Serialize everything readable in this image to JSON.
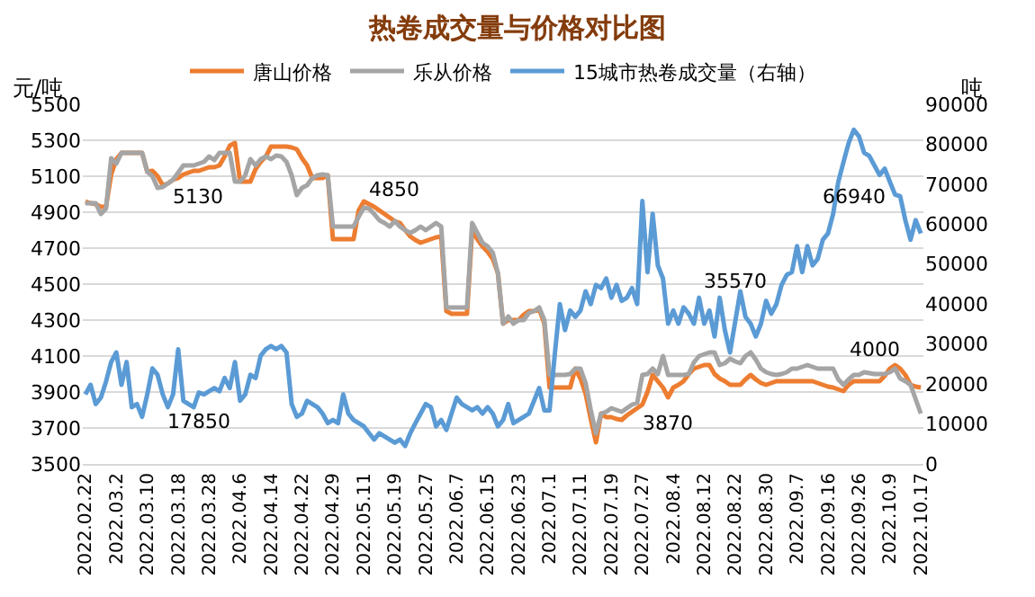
{
  "chart_data": {
    "type": "line",
    "title": "热卷成交量与价格对比图",
    "ylabel": "元/吨",
    "y2label": "吨",
    "categories": [
      "2022.02.22",
      null,
      null,
      null,
      null,
      null,
      "2022.03.2",
      null,
      null,
      null,
      null,
      null,
      "2022.03.10",
      null,
      null,
      null,
      null,
      null,
      "2022.03.18",
      null,
      null,
      null,
      null,
      null,
      "2022.03.28",
      null,
      null,
      null,
      null,
      null,
      "2022.04.6",
      null,
      null,
      null,
      null,
      null,
      "2022.04.14",
      null,
      null,
      null,
      null,
      null,
      "2022.04.22",
      null,
      null,
      null,
      null,
      null,
      "2022.04.29",
      null,
      null,
      null,
      null,
      null,
      "2022.05.11",
      null,
      null,
      null,
      null,
      null,
      "2022.05.19",
      null,
      null,
      null,
      null,
      null,
      "2022.05.27",
      null,
      null,
      null,
      null,
      null,
      "2022.06.7",
      null,
      null,
      null,
      null,
      null,
      "2022.06.15",
      null,
      null,
      null,
      null,
      null,
      "2022.06.23",
      null,
      null,
      null,
      null,
      null,
      "2022.07.1",
      null,
      null,
      null,
      null,
      null,
      "2022.07.11",
      null,
      null,
      null,
      null,
      null,
      "2022.07.19",
      null,
      null,
      null,
      null,
      null,
      "2022.07.27",
      null,
      null,
      null,
      null,
      null,
      "2022.08.4",
      null,
      null,
      null,
      null,
      null,
      "2022.08.12",
      null,
      null,
      null,
      null,
      null,
      "2022.08.22",
      null,
      null,
      null,
      null,
      null,
      "2022.08.30",
      null,
      null,
      null,
      null,
      null,
      "2022.09.7",
      null,
      null,
      null,
      null,
      null,
      "2022.09.16",
      null,
      null,
      null,
      null,
      null,
      "2022.09.26",
      null,
      null,
      null,
      null,
      null,
      "2022.10.9",
      null,
      null,
      null,
      null,
      null,
      "2022.10.17"
    ],
    "ylim": [
      3500,
      5500
    ],
    "yticks": [
      3500,
      3700,
      3900,
      4100,
      4300,
      4500,
      4700,
      4900,
      5100,
      5300,
      5500
    ],
    "y2lim": [
      0,
      90000
    ],
    "y2ticks": [
      0,
      10000,
      20000,
      30000,
      40000,
      50000,
      60000,
      70000,
      80000,
      90000
    ],
    "grid": "y",
    "legend": "top",
    "marker": "none",
    "line_style": "solid",
    "series": [
      {
        "name": "唐山价格",
        "color": "#ed7d31",
        "values": [
          4960,
          4950,
          4945,
          4930,
          4930,
          5110,
          5195,
          5230,
          5230,
          5230,
          5230,
          5230,
          5125,
          5130,
          5100,
          5050,
          5060,
          5080,
          5090,
          5110,
          5120,
          5130,
          5130,
          5140,
          5150,
          5150,
          5160,
          5210,
          5270,
          5285,
          5070,
          5070,
          5070,
          5140,
          5180,
          5210,
          5265,
          5265,
          5265,
          5265,
          5260,
          5250,
          5200,
          5160,
          5090,
          5090,
          5090,
          5105,
          4750,
          4750,
          4750,
          4750,
          4750,
          4910,
          4960,
          4945,
          4930,
          4910,
          4890,
          4870,
          4850,
          4840,
          4800,
          4765,
          4745,
          4730,
          4740,
          4750,
          4760,
          4765,
          4350,
          4335,
          4335,
          4335,
          4335,
          4800,
          4750,
          4710,
          4680,
          4640,
          4560,
          4280,
          4300,
          4300,
          4300,
          4330,
          4350,
          4350,
          4360,
          4280,
          3925,
          3925,
          3925,
          3925,
          3925,
          4030,
          3975,
          3890,
          3750,
          3620,
          3780,
          3760,
          3760,
          3750,
          3745,
          3770,
          3790,
          3810,
          3830,
          3900,
          3995,
          3960,
          3925,
          3870,
          3925,
          3940,
          3960,
          4000,
          4030,
          4040,
          4050,
          4050,
          4000,
          3975,
          3960,
          3940,
          3940,
          3940,
          3970,
          3995,
          3970,
          3950,
          3940,
          3950,
          3960,
          3960,
          3960,
          3960,
          3960,
          3960,
          3960,
          3960,
          3950,
          3940,
          3930,
          3925,
          3915,
          3905,
          3940,
          3960,
          3960,
          3960,
          3960,
          3960,
          3960,
          3990,
          4030,
          4050,
          4030,
          3995,
          3940,
          3930,
          3925
        ],
        "value_labels": [
          null,
          null,
          null,
          null,
          null,
          null,
          null,
          null,
          null,
          null,
          null,
          null,
          null,
          null,
          null,
          null,
          null,
          null,
          null,
          null,
          null,
          null,
          "5130",
          null,
          null,
          null,
          null,
          null,
          null,
          null,
          null,
          null,
          null,
          null,
          null,
          null,
          null,
          null,
          null,
          null,
          null,
          null,
          null,
          null,
          null,
          null,
          null,
          null,
          null,
          null,
          null,
          null,
          null,
          null,
          null,
          null,
          null,
          null,
          null,
          null,
          null,
          null,
          null,
          null,
          null,
          null,
          null,
          null,
          null,
          null,
          null,
          null,
          null,
          null,
          null,
          null,
          null,
          null,
          null,
          null,
          null,
          null,
          null,
          null,
          null,
          null,
          null,
          null,
          null,
          null,
          null,
          null,
          null,
          null,
          null,
          null,
          null,
          null,
          null,
          null,
          null,
          null,
          null,
          null,
          null,
          null,
          null,
          null,
          null,
          null,
          null,
          null,
          null,
          "3870",
          null,
          null,
          null,
          null,
          null,
          null,
          null,
          null,
          null,
          null,
          null,
          null,
          null,
          null,
          null,
          null,
          null,
          null,
          null,
          null,
          null,
          null,
          null,
          null,
          null,
          null,
          null,
          null,
          null,
          null,
          null,
          null,
          null,
          null,
          null,
          null,
          null,
          null,
          null,
          null,
          null,
          null,
          null,
          null,
          null,
          null,
          null,
          null,
          null
        ]
      },
      {
        "name": "乐从价格",
        "color": "#a5a5a5",
        "values": [
          4950,
          4950,
          4950,
          4890,
          4920,
          5200,
          5170,
          5230,
          5230,
          5230,
          5230,
          5230,
          5125,
          5100,
          5035,
          5040,
          5060,
          5080,
          5120,
          5160,
          5160,
          5160,
          5170,
          5180,
          5210,
          5190,
          5230,
          5230,
          5230,
          5070,
          5070,
          5105,
          5195,
          5160,
          5195,
          5210,
          5195,
          5215,
          5210,
          5180,
          5105,
          4995,
          5035,
          5050,
          5090,
          5105,
          5110,
          5105,
          4820,
          4820,
          4820,
          4820,
          4820,
          4875,
          4925,
          4920,
          4890,
          4855,
          4840,
          4820,
          4850,
          4820,
          4800,
          4785,
          4800,
          4820,
          4800,
          4820,
          4840,
          4820,
          4370,
          4370,
          4370,
          4370,
          4370,
          4840,
          4785,
          4730,
          4710,
          4675,
          4560,
          4280,
          4320,
          4280,
          4300,
          4300,
          4340,
          4350,
          4370,
          4300,
          3995,
          3995,
          3995,
          3995,
          4000,
          4030,
          4030,
          3950,
          3800,
          3670,
          3780,
          3790,
          3810,
          3800,
          3790,
          3810,
          3830,
          3840,
          3995,
          4000,
          4030,
          4000,
          4100,
          3995,
          3995,
          3995,
          3995,
          4000,
          4065,
          4100,
          4110,
          4120,
          4120,
          4050,
          4060,
          4085,
          4070,
          4060,
          4100,
          4120,
          4080,
          4030,
          4010,
          4000,
          3995,
          4000,
          4010,
          4030,
          4030,
          4040,
          4050,
          4040,
          4030,
          4030,
          4030,
          4030,
          3970,
          3940,
          3970,
          3995,
          3995,
          4010,
          4005,
          4000,
          4000,
          4000,
          4010,
          4030,
          3975,
          3960,
          3940,
          3860,
          3780
        ],
        "value_labels": [
          null,
          null,
          null,
          null,
          null,
          null,
          null,
          null,
          null,
          null,
          null,
          null,
          null,
          null,
          null,
          null,
          null,
          null,
          null,
          null,
          null,
          null,
          null,
          null,
          null,
          null,
          null,
          null,
          null,
          null,
          null,
          null,
          null,
          null,
          null,
          null,
          null,
          null,
          null,
          null,
          null,
          null,
          null,
          null,
          null,
          null,
          null,
          null,
          null,
          null,
          null,
          null,
          null,
          null,
          null,
          null,
          null,
          null,
          null,
          null,
          "4850",
          null,
          null,
          null,
          null,
          null,
          null,
          null,
          null,
          null,
          null,
          null,
          null,
          null,
          null,
          null,
          null,
          null,
          null,
          null,
          null,
          null,
          null,
          null,
          null,
          null,
          null,
          null,
          null,
          null,
          null,
          null,
          null,
          null,
          null,
          null,
          null,
          null,
          null,
          null,
          null,
          null,
          null,
          null,
          null,
          null,
          null,
          null,
          null,
          null,
          null,
          null,
          null,
          null,
          null,
          null,
          null,
          null,
          null,
          null,
          null,
          null,
          null,
          null,
          null,
          null,
          null,
          null,
          null,
          null,
          null,
          null,
          null,
          null,
          null,
          null,
          null,
          null,
          null,
          null,
          null,
          null,
          null,
          null,
          null,
          null,
          null,
          null,
          null,
          null,
          null,
          null,
          null,
          "4000",
          null,
          null,
          null,
          null,
          null,
          null,
          null,
          null,
          null
        ]
      },
      {
        "name": "15城市热卷成交量（右轴）",
        "color": "#5b9bd5",
        "axis": "y2",
        "values": [
          17400,
          19800,
          15000,
          16600,
          20600,
          25500,
          27900,
          19800,
          25500,
          14200,
          15000,
          11800,
          17400,
          23900,
          22300,
          17400,
          14200,
          17400,
          28700,
          15800,
          15000,
          14200,
          17850,
          17400,
          18200,
          19000,
          18200,
          21500,
          19000,
          25500,
          15800,
          17400,
          22300,
          21500,
          27100,
          28700,
          29500,
          28700,
          29500,
          27900,
          15000,
          11800,
          12600,
          15800,
          15000,
          14200,
          12600,
          10200,
          11000,
          10200,
          17400,
          12600,
          11000,
          10200,
          9400,
          7700,
          6100,
          7700,
          6900,
          6100,
          5300,
          6100,
          4500,
          7700,
          10200,
          12600,
          15000,
          14200,
          9400,
          11000,
          8500,
          12600,
          16600,
          15000,
          14200,
          13400,
          14200,
          12600,
          14200,
          12600,
          9400,
          11000,
          15000,
          10200,
          11000,
          11800,
          12600,
          15800,
          19000,
          13400,
          13400,
          27100,
          40000,
          33500,
          38400,
          36800,
          38400,
          43200,
          40000,
          44800,
          44000,
          46400,
          41600,
          44800,
          40800,
          41600,
          44000,
          40000,
          65800,
          48000,
          62600,
          49700,
          46400,
          35100,
          38400,
          35100,
          39200,
          37600,
          35100,
          41600,
          35100,
          38400,
          31900,
          41600,
          33500,
          27900,
          35570,
          43200,
          36800,
          35100,
          31900,
          35100,
          40800,
          37600,
          40000,
          44800,
          47300,
          48000,
          54500,
          48000,
          54500,
          49700,
          51300,
          56100,
          57700,
          62600,
          70600,
          75500,
          80300,
          83600,
          82000,
          77900,
          77100,
          74700,
          72300,
          73900,
          70600,
          67400,
          66940,
          61000,
          56100,
          61000,
          57700
        ],
        "value_labels": [
          null,
          null,
          null,
          null,
          null,
          null,
          null,
          null,
          null,
          null,
          null,
          null,
          null,
          null,
          null,
          null,
          null,
          null,
          null,
          null,
          null,
          null,
          "17850",
          null,
          null,
          null,
          null,
          null,
          null,
          null,
          null,
          null,
          null,
          null,
          null,
          null,
          null,
          null,
          null,
          null,
          null,
          null,
          null,
          null,
          null,
          null,
          null,
          null,
          null,
          null,
          null,
          null,
          null,
          null,
          null,
          null,
          null,
          null,
          null,
          null,
          null,
          null,
          null,
          null,
          null,
          null,
          null,
          null,
          null,
          null,
          null,
          null,
          null,
          null,
          null,
          null,
          null,
          null,
          null,
          null,
          null,
          null,
          null,
          null,
          null,
          null,
          null,
          null,
          null,
          null,
          null,
          null,
          null,
          null,
          null,
          null,
          null,
          null,
          null,
          null,
          null,
          null,
          null,
          null,
          null,
          null,
          null,
          null,
          null,
          null,
          null,
          null,
          null,
          null,
          null,
          null,
          null,
          null,
          null,
          null,
          null,
          null,
          null,
          null,
          null,
          null,
          "35570",
          null,
          null,
          null,
          null,
          null,
          null,
          null,
          null,
          null,
          null,
          null,
          null,
          null,
          null,
          null,
          null,
          null,
          null,
          null,
          null,
          null,
          null,
          null,
          null,
          null,
          null,
          null,
          null,
          null,
          null,
          null,
          "66940",
          null,
          null,
          null,
          null
        ]
      }
    ]
  }
}
